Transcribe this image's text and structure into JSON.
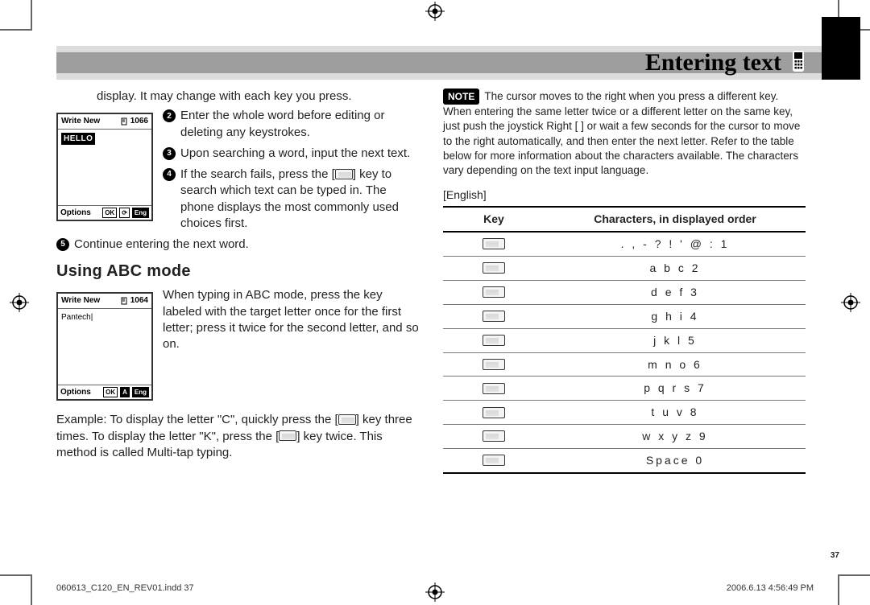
{
  "header": {
    "title": "Entering text",
    "icon_name": "phone-text-icon"
  },
  "left": {
    "p0": "display. It may change with each key you press.",
    "phone1": {
      "title": "Write New",
      "counter": "1066",
      "body_text": "HELLO",
      "foot_opt": "Options",
      "foot_ok": "OK",
      "foot_mode": "⟳",
      "foot_lang": "Eng"
    },
    "steps_a": [
      "Enter the whole word before editing or deleting any keystrokes.",
      "Upon searching a word, input the next text.",
      "If the search fails, press the [    ] key to search which text can be typed in. The phone displays the most commonly used choices first."
    ],
    "step5": "Continue entering the next word.",
    "h2": "Using ABC mode",
    "phone2": {
      "title": "Write New",
      "counter": "1064",
      "body_text": "Pantech|",
      "foot_opt": "Options",
      "foot_ok": "OK",
      "foot_mode": "A",
      "foot_lang": "Eng"
    },
    "abc_para": "When typing in ABC mode, press the key labeled with the target letter once for the first letter; press it twice for the second letter, and so on.",
    "example_1": "Example: To display the letter \"C\", quickly press the [",
    "example_2": "] key three times. To display the letter \"K\", press the [",
    "example_3": "] key twice. This method is called Multi-tap typing."
  },
  "right": {
    "note_badge": "NOTE",
    "note_text": "The cursor moves to the right when you press a different key. When entering the same letter twice or a different letter on the same key, just push the joystick Right [    ] or wait a few seconds for the cursor to move to the right automatically, and then enter the next letter. Refer to the table below for more information about the characters available. The characters vary depending on the text input language.",
    "table_label": "[English]",
    "table": {
      "columns": [
        "Key",
        "Characters, in displayed order"
      ],
      "rows": [
        ". , - ? ! ' @ : 1",
        "a b c 2",
        "d e f 3",
        "g h i 4",
        "j k l 5",
        "m n o 6",
        "p q r s 7",
        "t u v 8",
        "w x y z 9",
        "Space 0"
      ]
    }
  },
  "page_number": "37",
  "footer": {
    "left": "060613_C120_EN_REV01.indd   37",
    "right": "2006.6.13   4:56:49 PM"
  }
}
